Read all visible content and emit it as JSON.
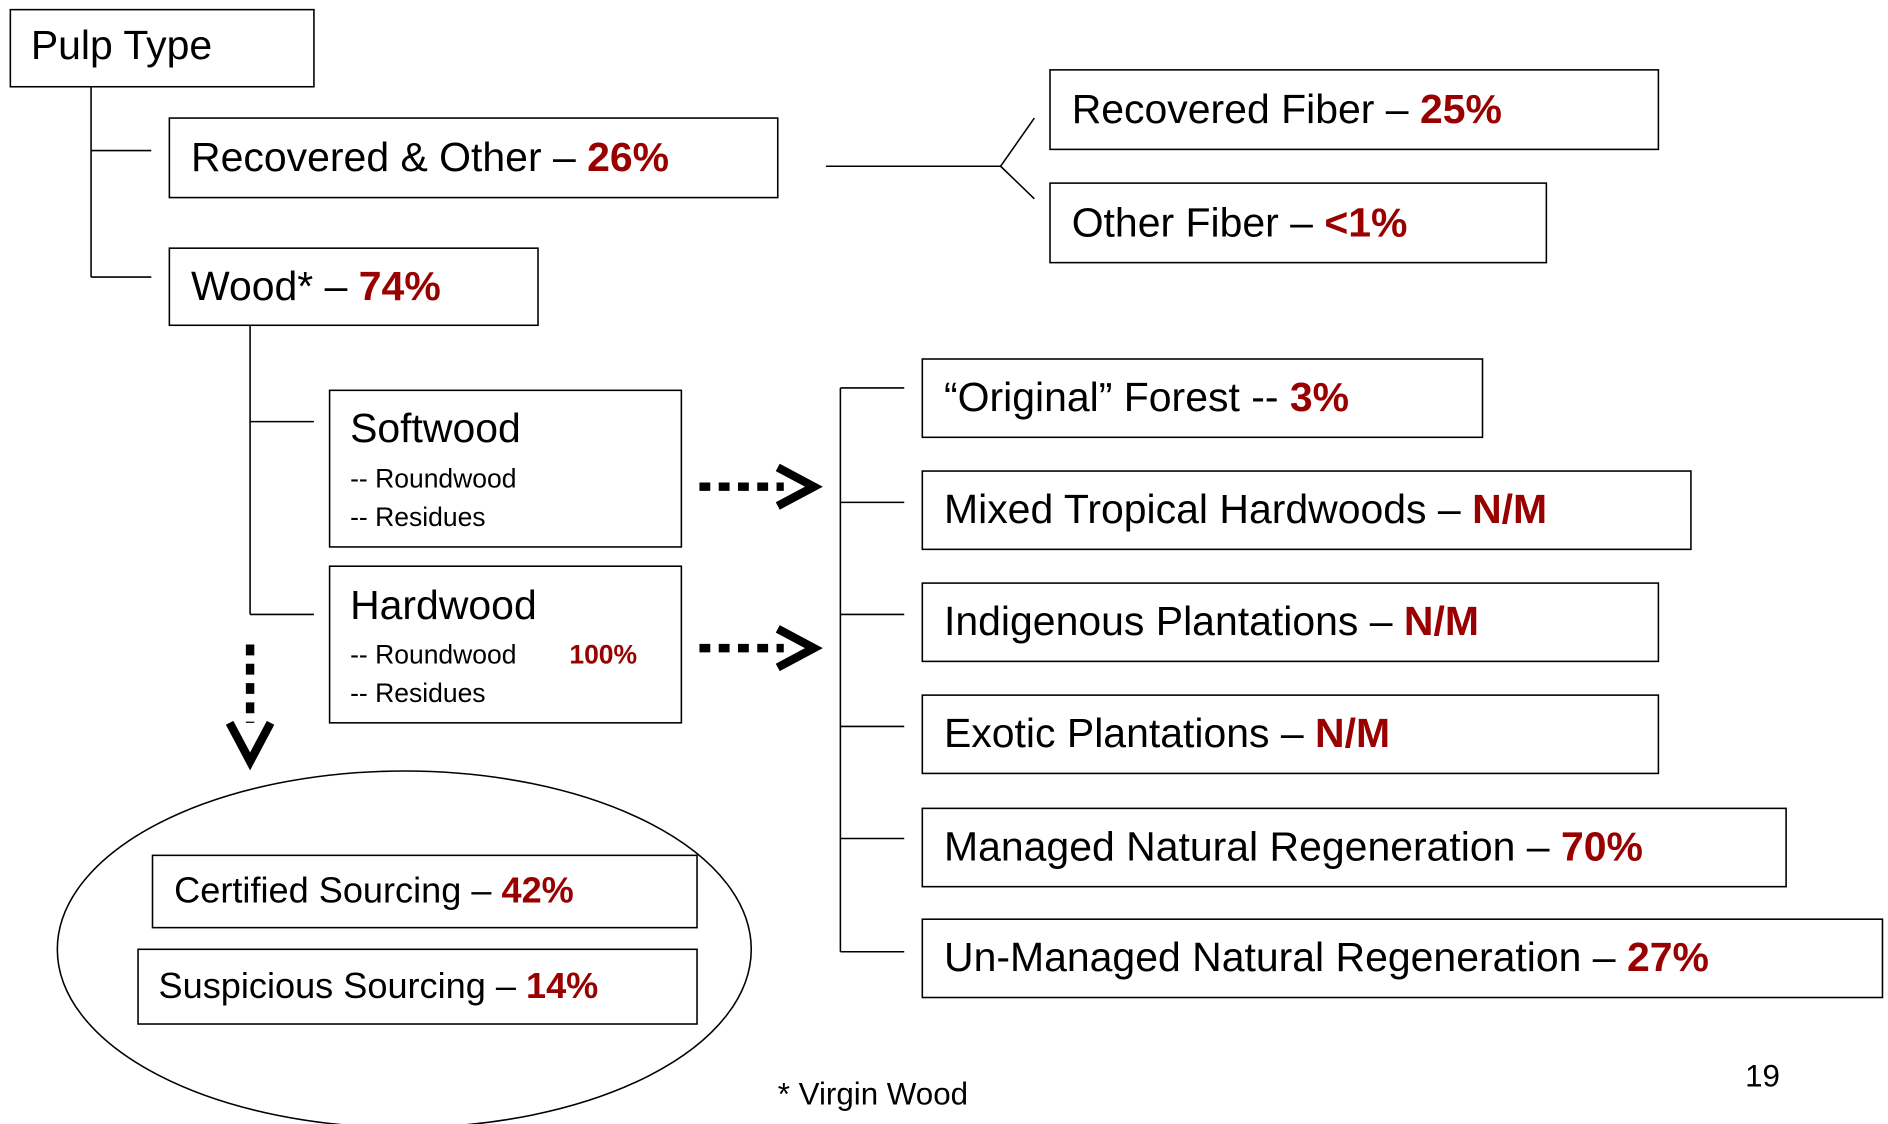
{
  "root": {
    "label": "Pulp Type"
  },
  "recovered": {
    "label": "Recovered & Other – ",
    "value": "26%",
    "children": [
      {
        "label": "Recovered Fiber – ",
        "value": "25%"
      },
      {
        "label": "Other Fiber – ",
        "value": "<1%"
      }
    ]
  },
  "wood": {
    "label": "Wood* – ",
    "value": "74%",
    "softwood": {
      "label": "Softwood",
      "lines": [
        "-- Roundwood",
        "-- Residues"
      ]
    },
    "hardwood": {
      "label": "Hardwood",
      "lines": [
        "-- Roundwood",
        "-- Residues"
      ],
      "roundwood_value": "100%"
    }
  },
  "forest_types": [
    {
      "label": "“Original” Forest -- ",
      "value": "3%"
    },
    {
      "label": "Mixed Tropical Hardwoods – ",
      "value": "N/M"
    },
    {
      "label": "Indigenous Plantations – ",
      "value": "N/M"
    },
    {
      "label": "Exotic Plantations – ",
      "value": "N/M"
    },
    {
      "label": "Managed Natural Regeneration – ",
      "value": "70%"
    },
    {
      "label": "Un-Managed Natural Regeneration – ",
      "value": "27%"
    }
  ],
  "sourcing": [
    {
      "label": "Certified Sourcing –  ",
      "value": "42%"
    },
    {
      "label": "Suspicious Sourcing – ",
      "value": "14%"
    }
  ],
  "footnote": "* Virgin Wood",
  "page_number": "19"
}
